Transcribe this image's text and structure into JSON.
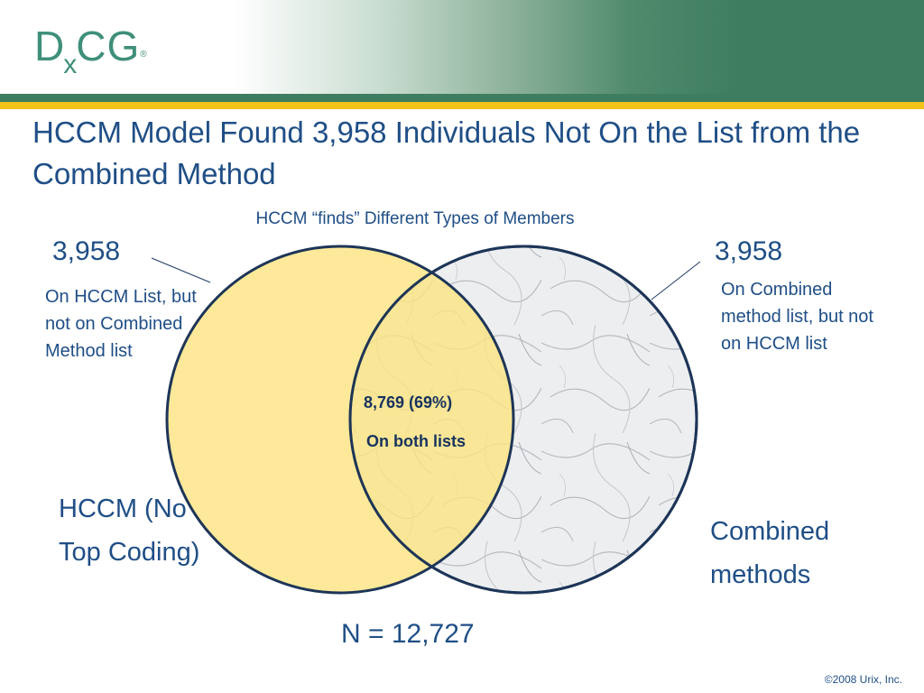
{
  "logo": {
    "d": "D",
    "x": "x",
    "cg": "CG",
    "reg": "®"
  },
  "title": "HCCM Model Found 3,958 Individuals Not On the List from the Combined Method",
  "subtitle": "HCCM “finds” Different Types of Members",
  "venn": {
    "left_count": "3,958",
    "left_desc": "On HCCM List, but not on Combined Method list",
    "right_count": "3,958",
    "right_desc": "On Combined method list, but not on HCCM list",
    "overlap_count": "8,769 (69%)",
    "overlap_label": "On both lists",
    "left_set": "HCCM (No Top Coding)",
    "right_set": "Combined methods",
    "total": "N = 12,727"
  },
  "footer": "©2008 Urix, Inc.",
  "colors": {
    "title": "#1f4e86",
    "left_circle": "#fde37f",
    "right_circle": "#e9ebed",
    "header_green": "#3f7d60",
    "accent_gold": "#f2c21b"
  }
}
